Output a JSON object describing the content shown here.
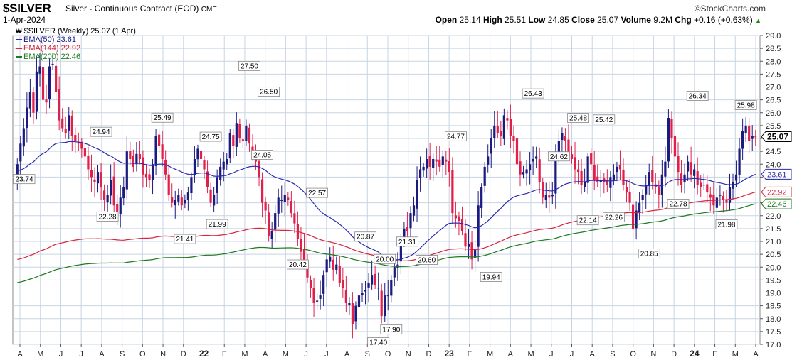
{
  "header": {
    "symbol": "$SILVER",
    "description": "Silver - Continuous Contract (EOD)",
    "exchange": "CME",
    "date": "1-Apr-2024",
    "brand": "©StockCharts.com",
    "open_label": "Open",
    "open": "25.14",
    "high_label": "High",
    "high": "25.51",
    "low_label": "Low",
    "low": "24.85",
    "close_label": "Close",
    "close": "25.07",
    "volume_label": "Volume",
    "volume": "9.2M",
    "chg_label": "Chg",
    "chg": "+0.16 (+0.63%)",
    "chg_arrow": "▲"
  },
  "legend": {
    "title": "$SILVER (Weekly) 25.07 (1 Apr)",
    "ema50": "EMA(50) 23.61",
    "ema144": "EMA(144) 22.92",
    "ema200": "EMA(200) 22.46"
  },
  "colors": {
    "up": "#1a1a80",
    "down": "#e0204a",
    "ema50": "#2b2bb0",
    "ema144": "#d8253c",
    "ema200": "#1e7a1e",
    "grid": "#c8d4e4",
    "plot_bg": "#ffffff",
    "axis_bg": "#ffffff"
  },
  "chart_data": {
    "type": "candlestick",
    "title": "$SILVER (Weekly)",
    "y_range": [
      17.0,
      29.0
    ],
    "y_ticks": [
      17.0,
      17.5,
      18.0,
      18.5,
      19.0,
      19.5,
      20.0,
      20.5,
      21.0,
      21.5,
      22.0,
      22.5,
      23.0,
      23.5,
      24.0,
      24.5,
      25.0,
      25.5,
      26.0,
      26.5,
      27.0,
      27.5,
      28.0,
      28.5,
      29.0
    ],
    "x_labels": [
      "A",
      "M",
      "J",
      "J",
      "A",
      "S",
      "O",
      "N",
      "D",
      "22",
      "F",
      "M",
      "A",
      "M",
      "J",
      "J",
      "A",
      "S",
      "O",
      "N",
      "D",
      "23",
      "F",
      "M",
      "A",
      "M",
      "J",
      "J",
      "A",
      "S",
      "O",
      "N",
      "D",
      "24",
      "F",
      "M",
      "A"
    ],
    "bold_x_labels": [
      "22",
      "23",
      "24"
    ],
    "closes": [
      24.0,
      24.8,
      25.4,
      26.2,
      26.8,
      26.0,
      27.6,
      27.8,
      26.5,
      26.4,
      27.8,
      27.9,
      26.8,
      25.7,
      25.4,
      25.2,
      25.9,
      25.1,
      24.9,
      24.8,
      24.6,
      24.3,
      23.8,
      23.5,
      23.3,
      23.7,
      23.1,
      22.6,
      22.8,
      23.4,
      22.4,
      22.1,
      22.7,
      23.1,
      24.5,
      24.2,
      23.9,
      24.4,
      24.2,
      23.6,
      23.5,
      23.4,
      24.0,
      25.1,
      24.7,
      24.2,
      23.6,
      22.8,
      22.5,
      22.6,
      22.8,
      22.4,
      22.6,
      22.9,
      23.5,
      24.2,
      24.6,
      24.2,
      23.8,
      23.1,
      22.5,
      22.8,
      23.5,
      23.9,
      24.1,
      24.2,
      25.2,
      24.7,
      25.6,
      25.0,
      24.9,
      25.5,
      24.8,
      24.5,
      24.1,
      23.5,
      22.5,
      22.2,
      21.2,
      21.4,
      22.1,
      22.7,
      22.6,
      22.8,
      22.6,
      22.1,
      21.7,
      21.1,
      20.6,
      20.2,
      19.6,
      19.2,
      18.6,
      18.7,
      18.9,
      19.7,
      20.3,
      20.4,
      19.9,
      20.1,
      19.4,
      19.2,
      18.6,
      18.6,
      17.8,
      18.5,
      18.9,
      19.0,
      19.1,
      19.4,
      19.7,
      19.3,
      19.2,
      18.1,
      18.9,
      18.9,
      19.5,
      20.0,
      20.1,
      21.0,
      21.5,
      21.4,
      22.1,
      22.4,
      23.4,
      23.8,
      23.9,
      24.2,
      23.9,
      24.2,
      24.1,
      23.9,
      24.3,
      24.1,
      23.7,
      22.1,
      21.9,
      21.8,
      21.4,
      20.8,
      20.9,
      20.3,
      20.7,
      22.4,
      23.1,
      23.9,
      24.3,
      25.0,
      25.5,
      25.2,
      25.1,
      25.9,
      25.7,
      25.1,
      24.9,
      24.0,
      23.6,
      23.7,
      23.8,
      24.0,
      24.2,
      24.3,
      23.3,
      22.7,
      22.8,
      22.7,
      22.8,
      24.4,
      24.9,
      25.2,
      24.9,
      24.3,
      24.2,
      23.8,
      23.7,
      23.2,
      23.3,
      24.3,
      24.0,
      23.4,
      23.3,
      23.4,
      23.3,
      23.2,
      23.5,
      23.6,
      23.9,
      23.8,
      23.2,
      22.9,
      22.5,
      21.5,
      22.2,
      22.5,
      22.8,
      23.2,
      23.7,
      23.3,
      23.1,
      22.8,
      23.6,
      24.1,
      25.8,
      25.0,
      24.3,
      23.7,
      23.2,
      23.6,
      24.1,
      23.6,
      23.8,
      23.2,
      23.1,
      23.2,
      22.9,
      22.7,
      22.4,
      22.7,
      22.8,
      22.6,
      22.5,
      23.1,
      23.3,
      23.6,
      24.6,
      25.3,
      25.5,
      24.9,
      25.1,
      25.07
    ],
    "ema50_endpoints": {
      "start": 23.74,
      "end": 23.61
    },
    "ema144_endpoints": {
      "start": 20.3,
      "end": 22.92
    },
    "ema200_endpoints": {
      "start": 19.4,
      "end": 22.46
    },
    "annotations": [
      {
        "label": "23.74",
        "x": 0,
        "y": 23.74
      },
      {
        "label": "24.94",
        "week": 26,
        "y": 24.94
      },
      {
        "label": "22.28",
        "week": 28,
        "y": 22.28
      },
      {
        "label": "25.49",
        "week": 45,
        "y": 25.49
      },
      {
        "label": "21.41",
        "week": 52,
        "y": 21.41
      },
      {
        "label": "24.75",
        "week": 60,
        "y": 24.75
      },
      {
        "label": "21.99",
        "week": 62,
        "y": 21.99
      },
      {
        "label": "27.50",
        "week": 72,
        "y": 27.5
      },
      {
        "label": "26.50",
        "week": 78,
        "y": 26.5
      },
      {
        "label": "24.05",
        "week": 76,
        "y": 24.05
      },
      {
        "label": "22.57",
        "week": 93,
        "y": 22.57
      },
      {
        "label": "20.42",
        "week": 87,
        "y": 20.42
      },
      {
        "label": "20.87",
        "week": 108,
        "y": 20.87
      },
      {
        "label": "20.00",
        "week": 114,
        "y": 20.0
      },
      {
        "label": "17.40",
        "week": 112,
        "y": 17.4
      },
      {
        "label": "17.90",
        "week": 116,
        "y": 17.9
      },
      {
        "label": "21.31",
        "week": 121,
        "y": 21.31
      },
      {
        "label": "20.60",
        "week": 127,
        "y": 20.6
      },
      {
        "label": "24.77",
        "week": 136,
        "y": 24.77
      },
      {
        "label": "19.94",
        "week": 147,
        "y": 19.94
      },
      {
        "label": "26.43",
        "week": 160,
        "y": 26.43
      },
      {
        "label": "24.62",
        "week": 168,
        "y": 24.62
      },
      {
        "label": "25.48",
        "week": 174,
        "y": 25.48
      },
      {
        "label": "25.42",
        "week": 182,
        "y": 25.42
      },
      {
        "label": "22.14",
        "week": 177,
        "y": 22.14
      },
      {
        "label": "22.26",
        "week": 185,
        "y": 22.26
      },
      {
        "label": "20.85",
        "week": 196,
        "y": 20.85
      },
      {
        "label": "22.78",
        "week": 205,
        "y": 22.78
      },
      {
        "label": "26.34",
        "week": 211,
        "y": 26.34
      },
      {
        "label": "21.98",
        "week": 220,
        "y": 21.98
      },
      {
        "label": "25.98",
        "week": 226,
        "y": 25.98
      }
    ],
    "price_tags": [
      {
        "label": "25.07",
        "y": 25.07,
        "style": "close"
      },
      {
        "label": "23.61",
        "y": 23.61,
        "style": "ema50"
      },
      {
        "label": "22.92",
        "y": 22.92,
        "style": "ema144"
      },
      {
        "label": "22.46",
        "y": 22.46,
        "style": "ema200"
      }
    ]
  }
}
